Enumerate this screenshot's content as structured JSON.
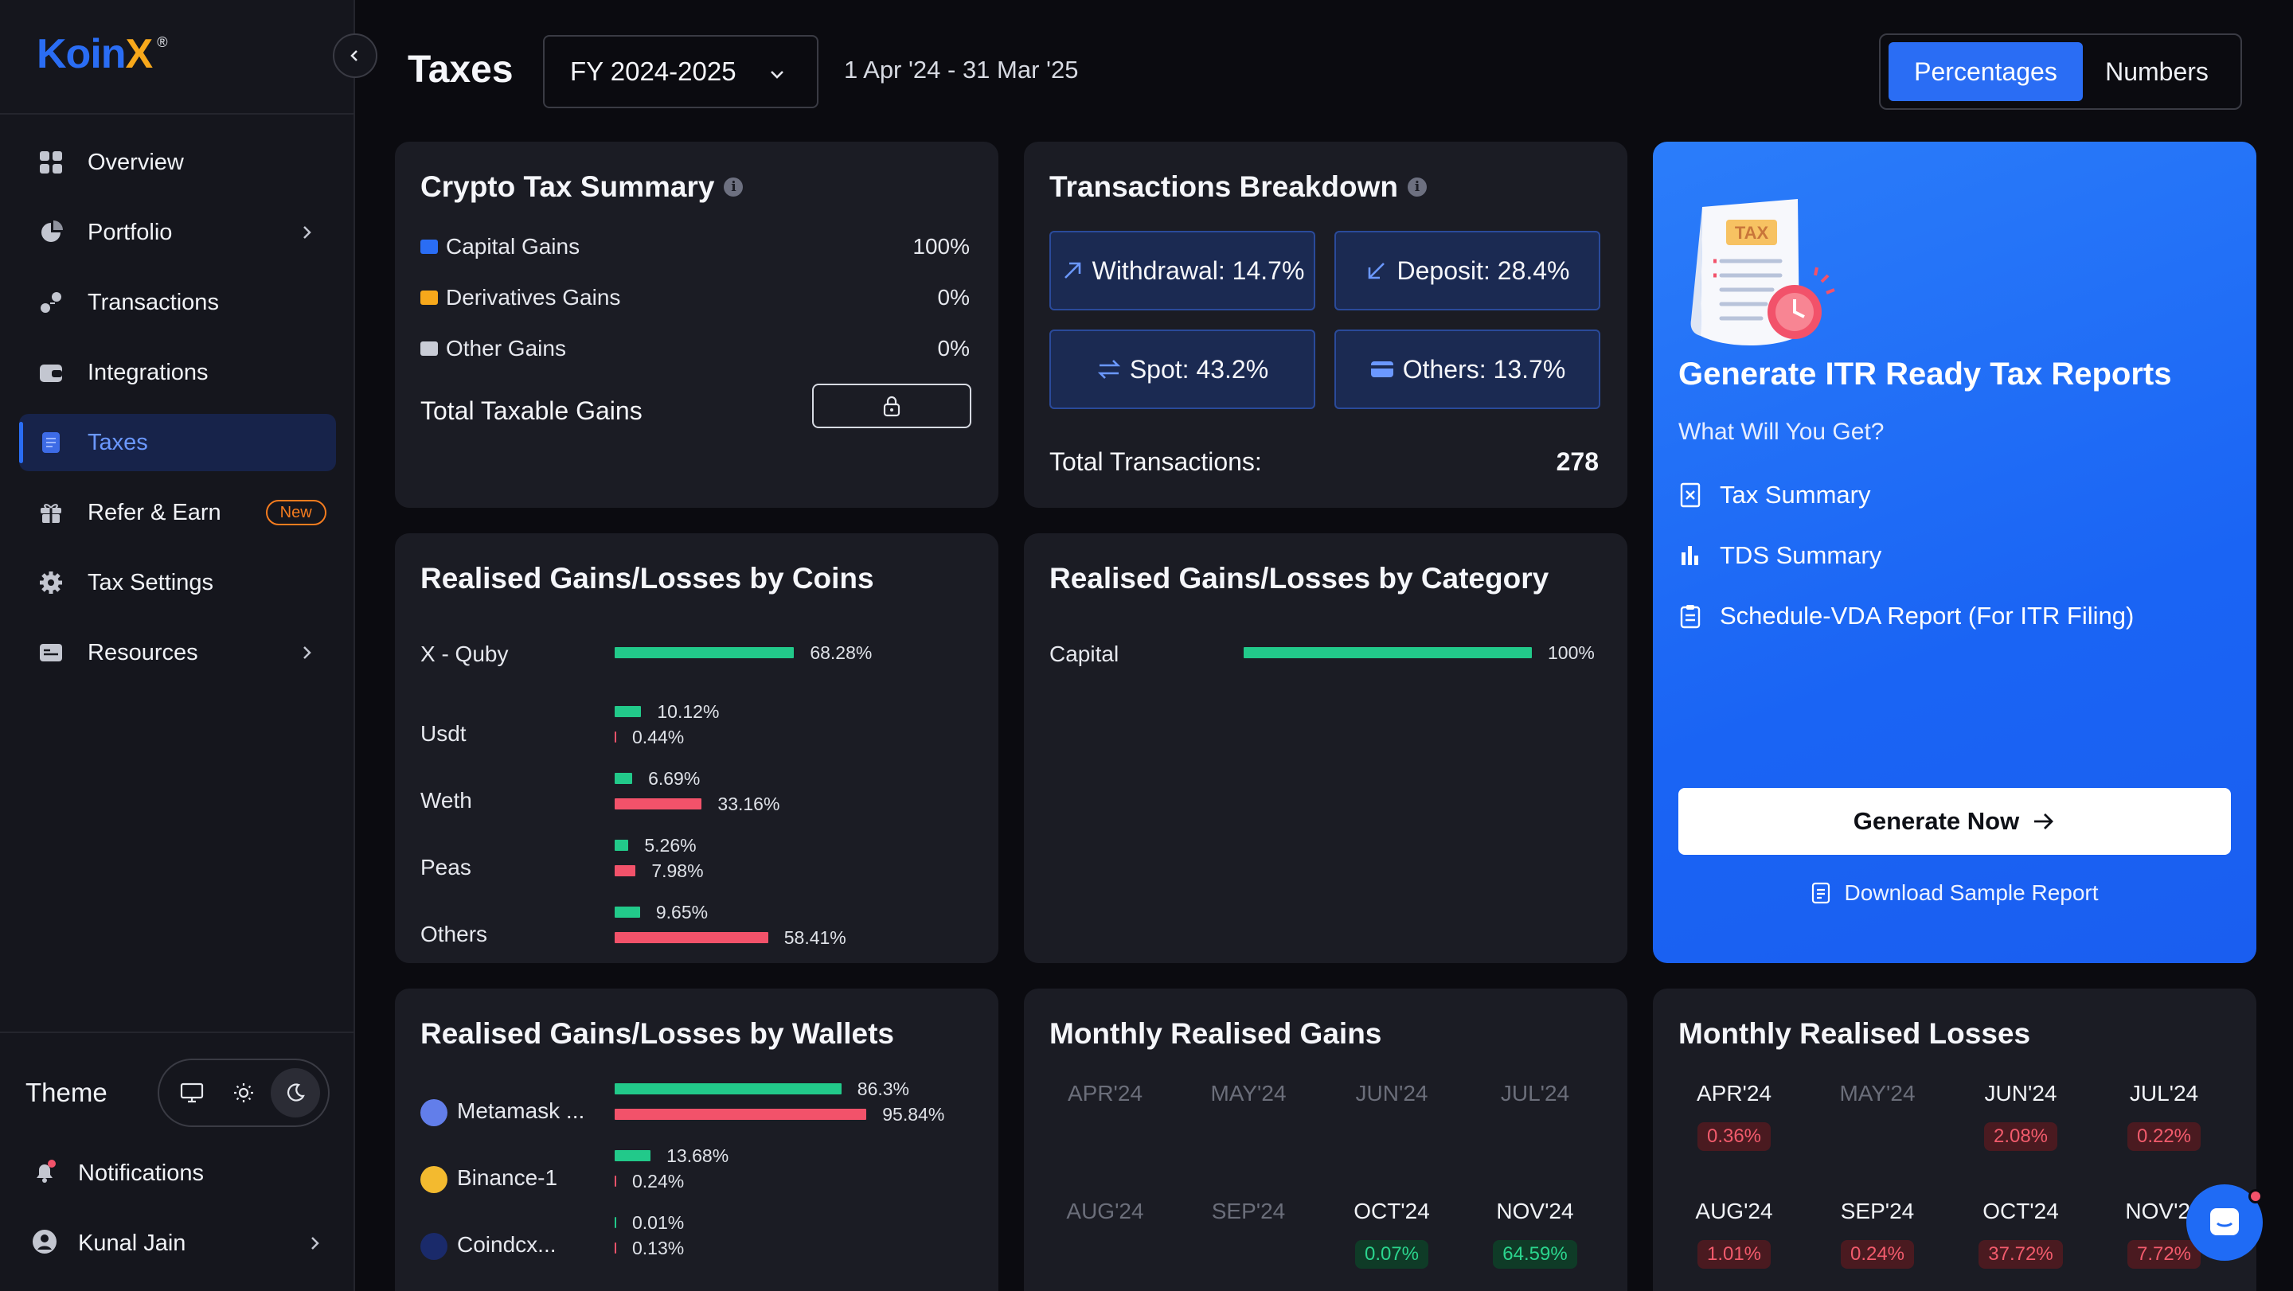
{
  "brand": {
    "logo_main": "Koin",
    "logo_x": "X",
    "logo_reg": "®"
  },
  "sidebar": {
    "items": [
      {
        "label": "Overview",
        "icon": "grid-icon"
      },
      {
        "label": "Portfolio",
        "icon": "pie-chart-icon",
        "has_chevron": true
      },
      {
        "label": "Transactions",
        "icon": "transfer-icon"
      },
      {
        "label": "Integrations",
        "icon": "wallet-icon"
      },
      {
        "label": "Taxes",
        "icon": "document-icon",
        "active": true
      },
      {
        "label": "Refer & Earn",
        "icon": "gift-icon",
        "badge": "New"
      },
      {
        "label": "Tax Settings",
        "icon": "gear-icon"
      },
      {
        "label": "Resources",
        "icon": "folder-icon",
        "has_chevron": true
      }
    ],
    "theme_label": "Theme",
    "notifications_label": "Notifications",
    "user_name": "Kunal Jain"
  },
  "header": {
    "title": "Taxes",
    "fy_selected": "FY 2024-2025",
    "date_range": "1 Apr '24 - 31 Mar '25",
    "view_options": [
      "Percentages",
      "Numbers"
    ],
    "view_selected": "Percentages"
  },
  "tax_summary": {
    "title": "Crypto Tax Summary",
    "rows": [
      {
        "label": "Capital Gains",
        "value": "100%",
        "color": "#2a6df4"
      },
      {
        "label": "Derivatives Gains",
        "value": "0%",
        "color": "#f7a81b"
      },
      {
        "label": "Other Gains",
        "value": "0%",
        "color": "#c9ccd6"
      }
    ],
    "total_label": "Total Taxable Gains"
  },
  "transactions_breakdown": {
    "title": "Transactions Breakdown",
    "boxes": [
      {
        "label": "Withdrawal: 14.7%",
        "icon": "arrow-up-right-icon"
      },
      {
        "label": "Deposit: 28.4%",
        "icon": "arrow-down-left-icon"
      },
      {
        "label": "Spot: 43.2%",
        "icon": "swap-icon"
      },
      {
        "label": "Others: 13.7%",
        "icon": "card-icon"
      }
    ],
    "total_label": "Total Transactions:",
    "total_value": "278"
  },
  "itr_promo": {
    "heading": "Generate ITR Ready Tax Reports",
    "subheading": "What Will You Get?",
    "items": [
      "Tax Summary",
      "TDS Summary",
      "Schedule-VDA Report (For ITR Filing)"
    ],
    "tax_label": "TAX",
    "cta": "Generate Now",
    "download": "Download Sample Report"
  },
  "by_coins": {
    "title": "Realised Gains/Losses by Coins",
    "rows": [
      {
        "name": "X - Quby",
        "gain": 68.28,
        "gain_label": "68.28%",
        "loss": null,
        "loss_label": null
      },
      {
        "name": "Usdt",
        "gain": 10.12,
        "gain_label": "10.12%",
        "loss": 0.44,
        "loss_label": "0.44%"
      },
      {
        "name": "Weth",
        "gain": 6.69,
        "gain_label": "6.69%",
        "loss": 33.16,
        "loss_label": "33.16%"
      },
      {
        "name": "Peas",
        "gain": 5.26,
        "gain_label": "5.26%",
        "loss": 7.98,
        "loss_label": "7.98%"
      },
      {
        "name": "Others",
        "gain": 9.65,
        "gain_label": "9.65%",
        "loss": 58.41,
        "loss_label": "58.41%"
      }
    ]
  },
  "by_category": {
    "title": "Realised Gains/Losses by Category",
    "rows": [
      {
        "name": "Capital",
        "gain": 100,
        "gain_label": "100%"
      }
    ]
  },
  "by_wallets": {
    "title": "Realised Gains/Losses by Wallets",
    "rows": [
      {
        "name": "Metamask ...",
        "icon": "ethereum-icon",
        "gain": 86.3,
        "gain_label": "86.3%",
        "loss": 95.84,
        "loss_label": "95.84%"
      },
      {
        "name": "Binance-1",
        "icon": "binance-icon",
        "gain": 13.68,
        "gain_label": "13.68%",
        "loss": 0.24,
        "loss_label": "0.24%"
      },
      {
        "name": "Coindcx...",
        "icon": "coindcx-icon",
        "gain": 0.01,
        "gain_label": "0.01%",
        "loss": 0.13,
        "loss_label": "0.13%"
      }
    ]
  },
  "monthly_gains": {
    "title": "Monthly Realised Gains",
    "months": [
      {
        "m": "APR'24",
        "v": null
      },
      {
        "m": "MAY'24",
        "v": null
      },
      {
        "m": "JUN'24",
        "v": null
      },
      {
        "m": "JUL'24",
        "v": null
      },
      {
        "m": "AUG'24",
        "v": null
      },
      {
        "m": "SEP'24",
        "v": null
      },
      {
        "m": "OCT'24",
        "v": "0.07%"
      },
      {
        "m": "NOV'24",
        "v": "64.59%"
      }
    ]
  },
  "monthly_losses": {
    "title": "Monthly Realised Losses",
    "months": [
      {
        "m": "APR'24",
        "v": "0.36%"
      },
      {
        "m": "MAY'24",
        "v": null
      },
      {
        "m": "JUN'24",
        "v": "2.08%"
      },
      {
        "m": "JUL'24",
        "v": "0.22%"
      },
      {
        "m": "AUG'24",
        "v": "1.01%"
      },
      {
        "m": "SEP'24",
        "v": "0.24%"
      },
      {
        "m": "OCT'24",
        "v": "37.72%"
      },
      {
        "m": "NOV'24",
        "v": "7.72%"
      }
    ]
  },
  "colors": {
    "accent": "#2a6df4",
    "gain": "#22c98a",
    "loss": "#f2526a",
    "badge": "#f57c1f"
  }
}
